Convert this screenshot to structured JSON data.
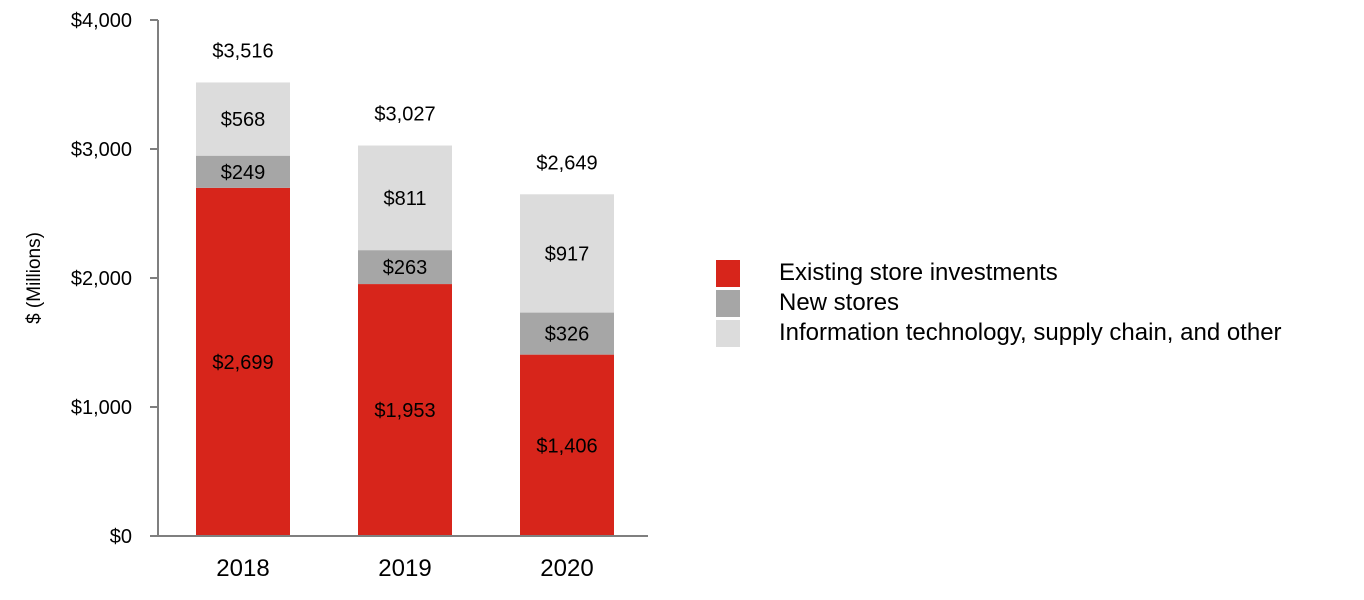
{
  "chart_data": {
    "type": "bar",
    "stacked": true,
    "categories": [
      "2018",
      "2019",
      "2020"
    ],
    "series": [
      {
        "name": "Existing store investments",
        "color": "#d7251b",
        "values": [
          2699,
          1953,
          1406
        ],
        "labels": [
          "$2,699",
          "$1,953",
          "$1,406"
        ]
      },
      {
        "name": "New stores",
        "color": "#a6a6a6",
        "values": [
          249,
          263,
          326
        ],
        "labels": [
          "$249",
          "$263",
          "$326"
        ]
      },
      {
        "name": "Information technology, supply chain, and other",
        "color": "#dcdcdc",
        "values": [
          568,
          811,
          917
        ],
        "labels": [
          "$568",
          "$811",
          "$917"
        ]
      }
    ],
    "totals": [
      3516,
      3027,
      2649
    ],
    "total_labels": [
      "$3,516",
      "$3,027",
      "$2,649"
    ],
    "ylabel": "$ (Millions)",
    "ylim": [
      0,
      4000
    ],
    "yticks": [
      0,
      1000,
      2000,
      3000,
      4000
    ],
    "ytick_labels": [
      "$0",
      "$1,000",
      "$2,000",
      "$3,000",
      "$4,000"
    ],
    "legend_position": "right"
  }
}
